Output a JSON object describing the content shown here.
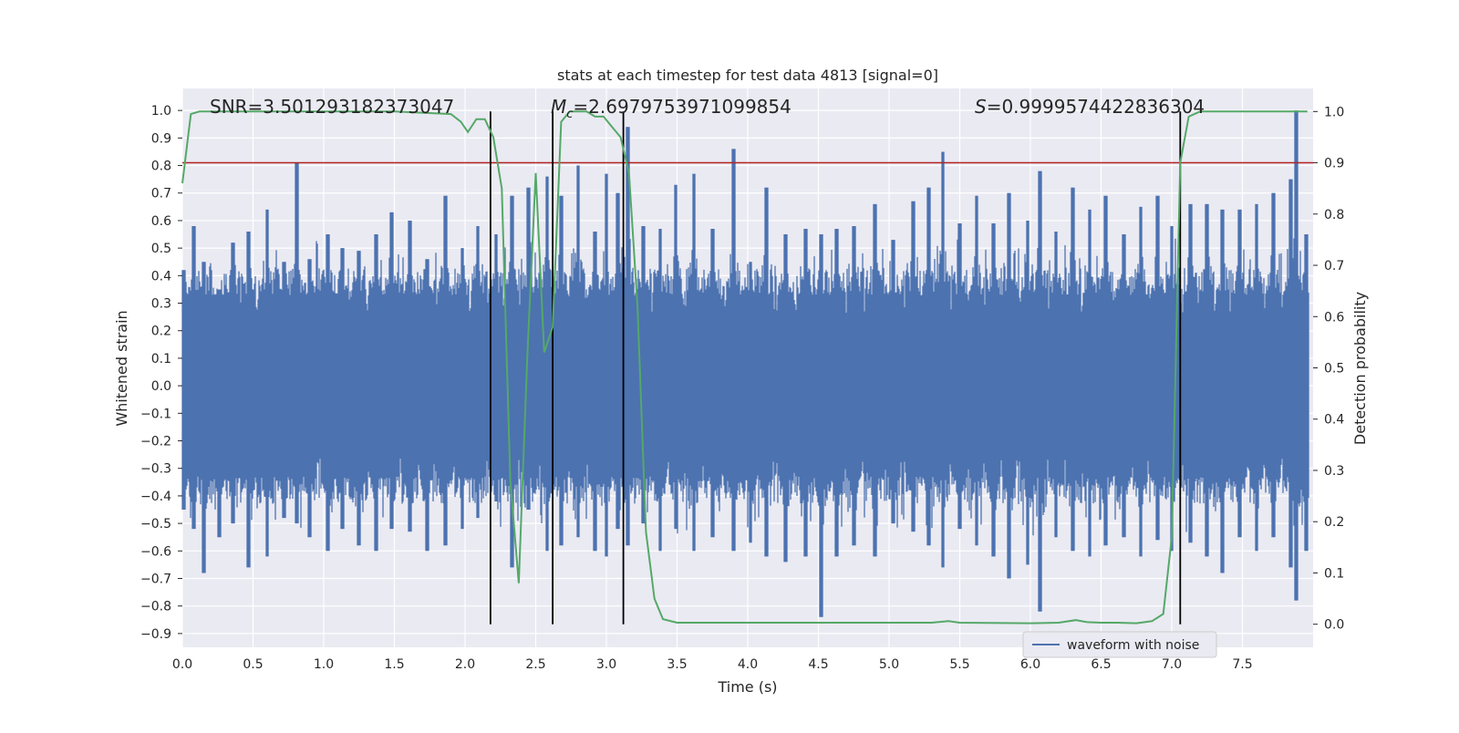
{
  "chart_data": {
    "type": "line",
    "title": "stats at each timestep for test data 4813 [signal=0]",
    "xlabel": "Time (s)",
    "ylabel": "Whitened strain",
    "y2label": "Detection probability",
    "xlim": [
      0,
      8
    ],
    "ylim": [
      -0.95,
      1.08
    ],
    "y2lim": [
      -0.045,
      1.045
    ],
    "xticks": [
      "0.0",
      "0.5",
      "1.0",
      "1.5",
      "2.0",
      "2.5",
      "3.0",
      "3.5",
      "4.0",
      "4.5",
      "5.0",
      "5.5",
      "6.0",
      "6.5",
      "7.0",
      "7.5"
    ],
    "yticks": [
      "1.0",
      "0.9",
      "0.8",
      "0.7",
      "0.6",
      "0.5",
      "0.4",
      "0.3",
      "0.2",
      "0.1",
      "0.0",
      "−0.1",
      "−0.2",
      "−0.3",
      "−0.4",
      "−0.5",
      "−0.6",
      "−0.7",
      "−0.8",
      "−0.9"
    ],
    "y2ticks": [
      "1.0",
      "0.9",
      "0.8",
      "0.7",
      "0.6",
      "0.5",
      "0.4",
      "0.3",
      "0.2",
      "0.1",
      "0.0"
    ],
    "grid": true,
    "legend_position": "bottom-right",
    "annotations": {
      "snr": "SNR=3.501293182373047",
      "mc_symbol": "M",
      "mc_sub": "c",
      "mc_value": "=2.6979753971099854",
      "s_symbol": "S",
      "s_value": "=0.9999574422836304"
    },
    "threshold": {
      "value": 0.9,
      "axis": "right",
      "color": "#b22222"
    },
    "vlines": [
      2.18,
      2.62,
      3.12,
      7.06
    ],
    "series": [
      {
        "name": "waveform with noise",
        "axis": "left",
        "color": "#4c72b0",
        "kind": "noisy-envelope",
        "typical_amplitude": 0.33,
        "peaks": [
          [
            0.01,
            0.42,
            -0.45
          ],
          [
            0.08,
            0.58,
            -0.52
          ],
          [
            0.15,
            0.45,
            -0.68
          ],
          [
            0.26,
            0.35,
            -0.55
          ],
          [
            0.36,
            0.52,
            -0.5
          ],
          [
            0.47,
            0.56,
            -0.66
          ],
          [
            0.6,
            0.64,
            -0.62
          ],
          [
            0.72,
            0.45,
            -0.48
          ],
          [
            0.81,
            0.81,
            -0.5
          ],
          [
            0.9,
            0.46,
            -0.55
          ],
          [
            1.03,
            0.55,
            -0.6
          ],
          [
            1.13,
            0.5,
            -0.52
          ],
          [
            1.25,
            0.49,
            -0.58
          ],
          [
            1.37,
            0.55,
            -0.6
          ],
          [
            1.48,
            0.63,
            -0.52
          ],
          [
            1.61,
            0.6,
            -0.53
          ],
          [
            1.73,
            0.46,
            -0.6
          ],
          [
            1.86,
            0.69,
            -0.58
          ],
          [
            1.98,
            0.5,
            -0.52
          ],
          [
            2.09,
            0.58,
            -0.48
          ],
          [
            2.22,
            0.55,
            -0.42
          ],
          [
            2.33,
            0.69,
            -0.66
          ],
          [
            2.45,
            0.72,
            -0.45
          ],
          [
            2.58,
            0.76,
            -0.6
          ],
          [
            2.68,
            0.69,
            -0.58
          ],
          [
            2.8,
            0.8,
            -0.55
          ],
          [
            2.92,
            0.56,
            -0.6
          ],
          [
            3.0,
            0.77,
            -0.62
          ],
          [
            3.08,
            0.7,
            -0.52
          ],
          [
            3.15,
            0.94,
            -0.58
          ],
          [
            3.26,
            0.58,
            -0.5
          ],
          [
            3.38,
            0.57,
            -0.6
          ],
          [
            3.49,
            0.73,
            -0.52
          ],
          [
            3.62,
            0.77,
            -0.6
          ],
          [
            3.75,
            0.57,
            -0.55
          ],
          [
            3.9,
            0.86,
            -0.6
          ],
          [
            4.02,
            0.45,
            -0.57
          ],
          [
            4.13,
            0.72,
            -0.62
          ],
          [
            4.27,
            0.55,
            -0.64
          ],
          [
            4.41,
            0.57,
            -0.62
          ],
          [
            4.52,
            0.55,
            -0.84
          ],
          [
            4.63,
            0.57,
            -0.62
          ],
          [
            4.75,
            0.58,
            -0.58
          ],
          [
            4.9,
            0.66,
            -0.62
          ],
          [
            5.03,
            0.53,
            -0.5
          ],
          [
            5.17,
            0.67,
            -0.53
          ],
          [
            5.28,
            0.72,
            -0.58
          ],
          [
            5.38,
            0.85,
            -0.66
          ],
          [
            5.5,
            0.59,
            -0.52
          ],
          [
            5.62,
            0.69,
            -0.58
          ],
          [
            5.74,
            0.59,
            -0.62
          ],
          [
            5.85,
            0.7,
            -0.7
          ],
          [
            5.98,
            0.6,
            -0.65
          ],
          [
            6.07,
            0.78,
            -0.82
          ],
          [
            6.18,
            0.56,
            -0.55
          ],
          [
            6.3,
            0.72,
            -0.6
          ],
          [
            6.42,
            0.64,
            -0.62
          ],
          [
            6.53,
            0.69,
            -0.58
          ],
          [
            6.66,
            0.55,
            -0.55
          ],
          [
            6.78,
            0.65,
            -0.62
          ],
          [
            6.9,
            0.69,
            -0.56
          ],
          [
            7.0,
            0.58,
            -0.6
          ],
          [
            7.13,
            0.66,
            -0.57
          ],
          [
            7.25,
            0.66,
            -0.62
          ],
          [
            7.36,
            0.64,
            -0.68
          ],
          [
            7.48,
            0.64,
            -0.55
          ],
          [
            7.6,
            0.66,
            -0.6
          ],
          [
            7.72,
            0.7,
            -0.55
          ],
          [
            7.84,
            0.75,
            -0.66
          ],
          [
            7.88,
            1.0,
            -0.78
          ],
          [
            7.95,
            0.55,
            -0.6
          ]
        ]
      },
      {
        "name": "",
        "axis": "right",
        "color": "#55a868",
        "x": [
          0.0,
          0.06,
          0.12,
          0.5,
          1.0,
          1.5,
          1.9,
          1.97,
          2.02,
          2.08,
          2.14,
          2.2,
          2.26,
          2.32,
          2.38,
          2.44,
          2.5,
          2.56,
          2.62,
          2.68,
          2.74,
          2.8,
          2.86,
          2.92,
          2.98,
          3.04,
          3.1,
          3.16,
          3.22,
          3.28,
          3.34,
          3.4,
          3.5,
          4.0,
          4.5,
          5.0,
          5.3,
          5.42,
          5.5,
          6.0,
          6.2,
          6.32,
          6.4,
          6.5,
          6.62,
          6.75,
          6.86,
          6.94,
          7.0,
          7.06,
          7.12,
          7.2,
          7.5,
          7.96
        ],
        "y": [
          0.86,
          0.995,
          1.0,
          1.0,
          1.0,
          1.0,
          0.995,
          0.98,
          0.96,
          0.985,
          0.985,
          0.95,
          0.85,
          0.28,
          0.08,
          0.52,
          0.88,
          0.53,
          0.58,
          0.98,
          1.0,
          1.0,
          1.0,
          0.99,
          0.99,
          0.97,
          0.95,
          0.88,
          0.62,
          0.18,
          0.05,
          0.01,
          0.003,
          0.003,
          0.003,
          0.003,
          0.003,
          0.006,
          0.003,
          0.002,
          0.003,
          0.008,
          0.004,
          0.003,
          0.003,
          0.002,
          0.006,
          0.02,
          0.17,
          0.9,
          0.99,
          1.0,
          1.0,
          1.0
        ]
      }
    ]
  }
}
